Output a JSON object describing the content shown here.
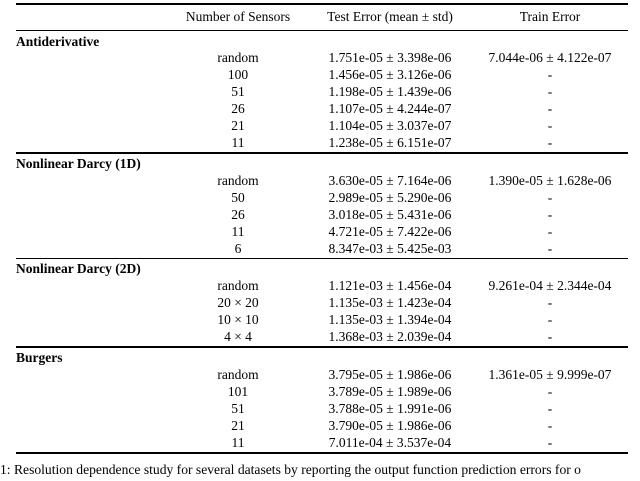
{
  "table": {
    "columns": {
      "sensors": "Number of Sensors",
      "test": "Test Error (mean ± std)",
      "train": "Train Error"
    },
    "sections": [
      {
        "name": "Antiderivative",
        "rows": [
          {
            "sensors": "random",
            "test": "1.751e-05 ± 3.398e-06",
            "train": "7.044e-06 ± 4.122e-07"
          },
          {
            "sensors": "100",
            "test": "1.456e-05 ± 3.126e-06",
            "train": "-"
          },
          {
            "sensors": "51",
            "test": "1.198e-05 ± 1.439e-06",
            "train": "-"
          },
          {
            "sensors": "26",
            "test": "1.107e-05 ± 4.244e-07",
            "train": "-"
          },
          {
            "sensors": "21",
            "test": "1.104e-05 ± 3.037e-07",
            "train": "-"
          },
          {
            "sensors": "11",
            "test": "1.238e-05 ± 6.151e-07",
            "train": "-"
          }
        ]
      },
      {
        "name": "Nonlinear Darcy (1D)",
        "rows": [
          {
            "sensors": "random",
            "test": "3.630e-05 ± 7.164e-06",
            "train": "1.390e-05 ± 1.628e-06"
          },
          {
            "sensors": "50",
            "test": "2.989e-05 ± 5.290e-06",
            "train": "-"
          },
          {
            "sensors": "26",
            "test": "3.018e-05 ± 5.431e-06",
            "train": "-"
          },
          {
            "sensors": "11",
            "test": "4.721e-05 ± 7.422e-06",
            "train": "-"
          },
          {
            "sensors": "6",
            "test": "8.347e-03 ± 5.425e-03",
            "train": "-"
          }
        ]
      },
      {
        "name": "Nonlinear Darcy (2D)",
        "rows": [
          {
            "sensors": "random",
            "test": "1.121e-03 ± 1.456e-04",
            "train": "9.261e-04 ± 2.344e-04"
          },
          {
            "sensors": "20 × 20",
            "test": "1.135e-03 ± 1.423e-04",
            "train": "-"
          },
          {
            "sensors": "10 × 10",
            "test": "1.135e-03 ± 1.394e-04",
            "train": "-"
          },
          {
            "sensors": "4 × 4",
            "test": "1.368e-03 ± 2.039e-04",
            "train": "-"
          }
        ]
      },
      {
        "name": "Burgers",
        "rows": [
          {
            "sensors": "random",
            "test": "3.795e-05 ± 1.986e-06",
            "train": "1.361e-05 ± 9.999e-07"
          },
          {
            "sensors": "101",
            "test": "3.789e-05 ± 1.989e-06",
            "train": "-"
          },
          {
            "sensors": "51",
            "test": "3.788e-05 ± 1.991e-06",
            "train": "-"
          },
          {
            "sensors": "21",
            "test": "3.790e-05 ± 1.986e-06",
            "train": "-"
          },
          {
            "sensors": "11",
            "test": "7.011e-04 ± 3.537e-04",
            "train": "-"
          }
        ]
      }
    ]
  },
  "caption": "1: Resolution dependence study for several datasets by reporting the output function prediction errors for o"
}
